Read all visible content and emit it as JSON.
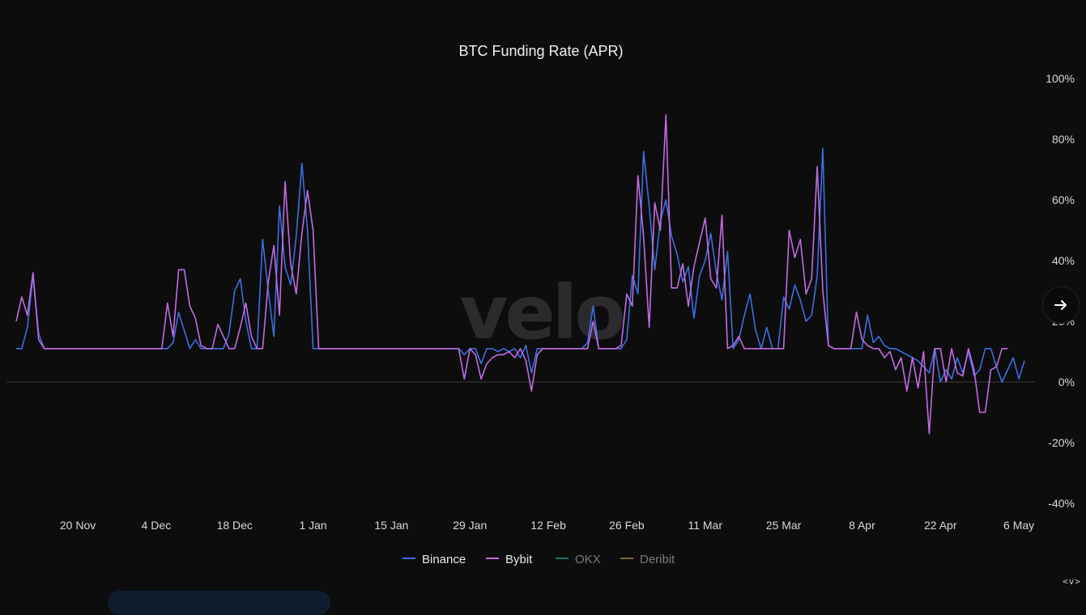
{
  "chart_data": {
    "type": "line",
    "title": "BTC Funding Rate (APR)",
    "ylim": [
      -40,
      100
    ],
    "y_ticks": [
      "100%",
      "80%",
      "60%",
      "40%",
      "20%",
      "0%",
      "-20%",
      "-40%"
    ],
    "y_tick_values": [
      100,
      80,
      60,
      40,
      20,
      0,
      -20,
      -40
    ],
    "x_ticks": [
      "20 Nov",
      "4 Dec",
      "18 Dec",
      "1 Jan",
      "15 Jan",
      "29 Jan",
      "12 Feb",
      "26 Feb",
      "11 Mar",
      "25 Mar",
      "8 Apr",
      "22 Apr",
      "6 May"
    ],
    "x_start": "2023-11-09",
    "x_end": "2024-05-07",
    "grid": false,
    "legend_position": "bottom",
    "series": [
      {
        "name": "Binance",
        "color": "#3b6fe0",
        "points": [
          [
            "2023-11-09",
            11
          ],
          [
            "2023-11-10",
            11
          ],
          [
            "2023-11-11",
            18
          ],
          [
            "2023-11-12",
            35
          ],
          [
            "2023-11-13",
            16
          ],
          [
            "2023-11-14",
            11
          ],
          [
            "2023-11-20",
            11
          ],
          [
            "2023-11-30",
            11
          ],
          [
            "2023-12-06",
            11
          ],
          [
            "2023-12-07",
            13
          ],
          [
            "2023-12-08",
            23
          ],
          [
            "2023-12-09",
            17
          ],
          [
            "2023-12-10",
            11
          ],
          [
            "2023-12-11",
            14
          ],
          [
            "2023-12-12",
            11
          ],
          [
            "2023-12-14",
            11
          ],
          [
            "2023-12-16",
            11
          ],
          [
            "2023-12-17",
            16
          ],
          [
            "2023-12-18",
            30
          ],
          [
            "2023-12-19",
            34
          ],
          [
            "2023-12-20",
            20
          ],
          [
            "2023-12-21",
            11
          ],
          [
            "2023-12-22",
            11
          ],
          [
            "2023-12-23",
            47
          ],
          [
            "2023-12-24",
            30
          ],
          [
            "2023-12-25",
            15
          ],
          [
            "2023-12-26",
            58
          ],
          [
            "2023-12-27",
            38
          ],
          [
            "2023-12-28",
            32
          ],
          [
            "2023-12-29",
            48
          ],
          [
            "2023-12-30",
            72
          ],
          [
            "2023-12-31",
            50
          ],
          [
            "2024-01-01",
            11
          ],
          [
            "2024-01-10",
            11
          ],
          [
            "2024-01-20",
            11
          ],
          [
            "2024-01-25",
            11
          ],
          [
            "2024-01-27",
            11
          ],
          [
            "2024-01-28",
            9
          ],
          [
            "2024-01-29",
            11
          ],
          [
            "2024-01-30",
            11
          ],
          [
            "2024-01-31",
            6
          ],
          [
            "2024-02-01",
            11
          ],
          [
            "2024-02-02",
            11
          ],
          [
            "2024-02-03",
            10
          ],
          [
            "2024-02-04",
            11
          ],
          [
            "2024-02-05",
            10
          ],
          [
            "2024-02-06",
            11
          ],
          [
            "2024-02-07",
            8
          ],
          [
            "2024-02-08",
            12
          ],
          [
            "2024-02-09",
            3
          ],
          [
            "2024-02-10",
            11
          ],
          [
            "2024-02-11",
            11
          ],
          [
            "2024-02-18",
            11
          ],
          [
            "2024-02-19",
            13
          ],
          [
            "2024-02-20",
            25
          ],
          [
            "2024-02-21",
            11
          ],
          [
            "2024-02-22",
            11
          ],
          [
            "2024-02-25",
            11
          ],
          [
            "2024-02-26",
            14
          ],
          [
            "2024-02-27",
            35
          ],
          [
            "2024-02-28",
            29
          ],
          [
            "2024-02-29",
            76
          ],
          [
            "2024-03-01",
            58
          ],
          [
            "2024-03-02",
            37
          ],
          [
            "2024-03-03",
            53
          ],
          [
            "2024-03-04",
            60
          ],
          [
            "2024-03-05",
            48
          ],
          [
            "2024-03-06",
            42
          ],
          [
            "2024-03-07",
            33
          ],
          [
            "2024-03-08",
            38
          ],
          [
            "2024-03-09",
            21
          ],
          [
            "2024-03-10",
            35
          ],
          [
            "2024-03-11",
            40
          ],
          [
            "2024-03-12",
            49
          ],
          [
            "2024-03-13",
            36
          ],
          [
            "2024-03-14",
            27
          ],
          [
            "2024-03-15",
            43
          ],
          [
            "2024-03-16",
            11
          ],
          [
            "2024-03-17",
            14
          ],
          [
            "2024-03-18",
            22
          ],
          [
            "2024-03-19",
            29
          ],
          [
            "2024-03-20",
            17
          ],
          [
            "2024-03-21",
            11
          ],
          [
            "2024-03-22",
            18
          ],
          [
            "2024-03-23",
            11
          ],
          [
            "2024-03-24",
            11
          ],
          [
            "2024-03-25",
            28
          ],
          [
            "2024-03-26",
            24
          ],
          [
            "2024-03-27",
            32
          ],
          [
            "2024-03-28",
            27
          ],
          [
            "2024-03-29",
            20
          ],
          [
            "2024-03-30",
            22
          ],
          [
            "2024-03-31",
            35
          ],
          [
            "2024-04-01",
            77
          ],
          [
            "2024-04-02",
            12
          ],
          [
            "2024-04-03",
            11
          ],
          [
            "2024-04-05",
            11
          ],
          [
            "2024-04-07",
            11
          ],
          [
            "2024-04-08",
            11
          ],
          [
            "2024-04-09",
            22
          ],
          [
            "2024-04-10",
            13
          ],
          [
            "2024-04-11",
            15
          ],
          [
            "2024-04-12",
            12
          ],
          [
            "2024-04-13",
            11
          ],
          [
            "2024-04-14",
            11
          ],
          [
            "2024-04-15",
            10
          ],
          [
            "2024-04-16",
            9
          ],
          [
            "2024-04-17",
            8
          ],
          [
            "2024-04-18",
            7
          ],
          [
            "2024-04-19",
            5
          ],
          [
            "2024-04-20",
            3
          ],
          [
            "2024-04-21",
            11
          ],
          [
            "2024-04-22",
            0
          ],
          [
            "2024-04-23",
            4
          ],
          [
            "2024-04-24",
            1
          ],
          [
            "2024-04-25",
            8
          ],
          [
            "2024-04-26",
            3
          ],
          [
            "2024-04-27",
            10
          ],
          [
            "2024-04-28",
            2
          ],
          [
            "2024-04-29",
            4
          ],
          [
            "2024-04-30",
            11
          ],
          [
            "2024-05-01",
            11
          ],
          [
            "2024-05-02",
            5
          ],
          [
            "2024-05-03",
            0
          ],
          [
            "2024-05-04",
            4
          ],
          [
            "2024-05-05",
            8
          ],
          [
            "2024-05-06",
            1
          ],
          [
            "2024-05-07",
            7
          ]
        ]
      },
      {
        "name": "Bybit",
        "color": "#c26be0",
        "points": [
          [
            "2023-11-09",
            20
          ],
          [
            "2023-11-10",
            28
          ],
          [
            "2023-11-11",
            22
          ],
          [
            "2023-11-12",
            36
          ],
          [
            "2023-11-13",
            14
          ],
          [
            "2023-11-14",
            11
          ],
          [
            "2023-11-20",
            11
          ],
          [
            "2023-11-30",
            11
          ],
          [
            "2023-12-05",
            11
          ],
          [
            "2023-12-06",
            26
          ],
          [
            "2023-12-07",
            15
          ],
          [
            "2023-12-08",
            37
          ],
          [
            "2023-12-09",
            37
          ],
          [
            "2023-12-10",
            25
          ],
          [
            "2023-12-11",
            21
          ],
          [
            "2023-12-12",
            12
          ],
          [
            "2023-12-13",
            11
          ],
          [
            "2023-12-14",
            11
          ],
          [
            "2023-12-15",
            19
          ],
          [
            "2023-12-16",
            15
          ],
          [
            "2023-12-17",
            11
          ],
          [
            "2023-12-18",
            11
          ],
          [
            "2023-12-19",
            18
          ],
          [
            "2023-12-20",
            26
          ],
          [
            "2023-12-21",
            15
          ],
          [
            "2023-12-22",
            11
          ],
          [
            "2023-12-23",
            11
          ],
          [
            "2023-12-24",
            33
          ],
          [
            "2023-12-25",
            45
          ],
          [
            "2023-12-26",
            22
          ],
          [
            "2023-12-27",
            66
          ],
          [
            "2023-12-28",
            39
          ],
          [
            "2023-12-29",
            29
          ],
          [
            "2023-12-30",
            49
          ],
          [
            "2023-12-31",
            63
          ],
          [
            "2024-01-01",
            50
          ],
          [
            "2024-01-02",
            11
          ],
          [
            "2024-01-10",
            11
          ],
          [
            "2024-01-20",
            11
          ],
          [
            "2024-01-26",
            11
          ],
          [
            "2024-01-27",
            11
          ],
          [
            "2024-01-28",
            1
          ],
          [
            "2024-01-29",
            11
          ],
          [
            "2024-01-30",
            9
          ],
          [
            "2024-01-31",
            1
          ],
          [
            "2024-02-01",
            6
          ],
          [
            "2024-02-02",
            8
          ],
          [
            "2024-02-03",
            9
          ],
          [
            "2024-02-04",
            9
          ],
          [
            "2024-02-05",
            10
          ],
          [
            "2024-02-06",
            8
          ],
          [
            "2024-02-07",
            11
          ],
          [
            "2024-02-08",
            7
          ],
          [
            "2024-02-09",
            -3
          ],
          [
            "2024-02-10",
            9
          ],
          [
            "2024-02-11",
            11
          ],
          [
            "2024-02-18",
            11
          ],
          [
            "2024-02-19",
            11
          ],
          [
            "2024-02-20",
            20
          ],
          [
            "2024-02-21",
            11
          ],
          [
            "2024-02-22",
            11
          ],
          [
            "2024-02-24",
            11
          ],
          [
            "2024-02-25",
            12
          ],
          [
            "2024-02-26",
            29
          ],
          [
            "2024-02-27",
            25
          ],
          [
            "2024-02-28",
            68
          ],
          [
            "2024-02-29",
            48
          ],
          [
            "2024-03-01",
            18
          ],
          [
            "2024-03-02",
            59
          ],
          [
            "2024-03-03",
            50
          ],
          [
            "2024-03-04",
            88
          ],
          [
            "2024-03-05",
            31
          ],
          [
            "2024-03-06",
            31
          ],
          [
            "2024-03-07",
            39
          ],
          [
            "2024-03-08",
            25
          ],
          [
            "2024-03-09",
            38
          ],
          [
            "2024-03-10",
            46
          ],
          [
            "2024-03-11",
            54
          ],
          [
            "2024-03-12",
            34
          ],
          [
            "2024-03-13",
            31
          ],
          [
            "2024-03-14",
            55
          ],
          [
            "2024-03-15",
            11
          ],
          [
            "2024-03-16",
            12
          ],
          [
            "2024-03-17",
            15
          ],
          [
            "2024-03-18",
            11
          ],
          [
            "2024-03-19",
            11
          ],
          [
            "2024-03-20",
            11
          ],
          [
            "2024-03-21",
            11
          ],
          [
            "2024-03-22",
            11
          ],
          [
            "2024-03-23",
            11
          ],
          [
            "2024-03-24",
            11
          ],
          [
            "2024-03-25",
            11
          ],
          [
            "2024-03-26",
            50
          ],
          [
            "2024-03-27",
            41
          ],
          [
            "2024-03-28",
            47
          ],
          [
            "2024-03-29",
            29
          ],
          [
            "2024-03-30",
            34
          ],
          [
            "2024-03-31",
            71
          ],
          [
            "2024-04-01",
            30
          ],
          [
            "2024-04-02",
            12
          ],
          [
            "2024-04-03",
            11
          ],
          [
            "2024-04-05",
            11
          ],
          [
            "2024-04-06",
            11
          ],
          [
            "2024-04-07",
            23
          ],
          [
            "2024-04-08",
            14
          ],
          [
            "2024-04-09",
            12
          ],
          [
            "2024-04-10",
            11
          ],
          [
            "2024-04-11",
            11
          ],
          [
            "2024-04-12",
            8
          ],
          [
            "2024-04-13",
            10
          ],
          [
            "2024-04-14",
            4
          ],
          [
            "2024-04-15",
            8
          ],
          [
            "2024-04-16",
            -3
          ],
          [
            "2024-04-17",
            8
          ],
          [
            "2024-04-18",
            -2
          ],
          [
            "2024-04-19",
            10
          ],
          [
            "2024-04-20",
            -17
          ],
          [
            "2024-04-21",
            11
          ],
          [
            "2024-04-22",
            11
          ],
          [
            "2024-04-23",
            0
          ],
          [
            "2024-04-24",
            11
          ],
          [
            "2024-04-25",
            3
          ],
          [
            "2024-04-26",
            2
          ],
          [
            "2024-04-27",
            11
          ],
          [
            "2024-04-28",
            4
          ],
          [
            "2024-04-29",
            -10
          ],
          [
            "2024-04-30",
            -10
          ],
          [
            "2024-05-01",
            4
          ],
          [
            "2024-05-02",
            5
          ],
          [
            "2024-05-03",
            11
          ],
          [
            "2024-05-04",
            11
          ]
        ]
      },
      {
        "name": "OKX",
        "color": "#1f6f6a",
        "points": [],
        "hidden": true
      },
      {
        "name": "Deribit",
        "color": "#7a6a3a",
        "points": [],
        "hidden": true
      }
    ],
    "watermark": "velo"
  },
  "nav": {
    "next_icon": "arrow-right-icon",
    "mini_controls": "<v>"
  }
}
